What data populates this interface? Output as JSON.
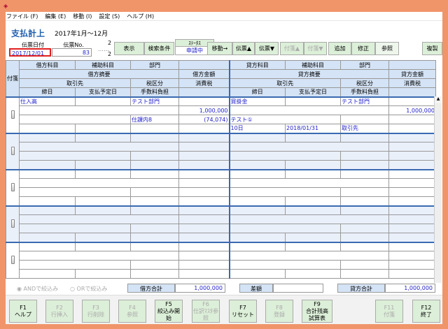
{
  "menu": [
    "ファイル (F)",
    "編集 (E)",
    "移動 (I)",
    "設定 (S)",
    "ヘルプ (H)"
  ],
  "header": {
    "title": "支払計上",
    "period": "2017年1月～12月",
    "date_label": "伝票日付",
    "date_value": "2017/12/01",
    "no_label": "伝票No.",
    "no_value": "83",
    "page_top": "2",
    "page_bottom": "2",
    "status_label": "ｽﾃｰﾀｽ",
    "status_value": "申請中"
  },
  "toolbar": {
    "show": "表示",
    "search": "検索条件",
    "move": "移動→",
    "slip_up": "伝票▲",
    "slip_down": "伝票▼",
    "tag_up": "付箋▲",
    "tag_down": "付箋▼",
    "add": "追加",
    "edit": "修正",
    "ref": "参照",
    "copy": "複製"
  },
  "grid_header": {
    "tag": "付箋",
    "debit_account": "借方科目",
    "debit_sub": "補助科目",
    "debit_dept": "部門",
    "debit_summary": "借方摘要",
    "debit_amount": "借方金額",
    "partner": "取引先",
    "tax_class": "税区分",
    "tax": "消費税",
    "closing": "締日",
    "pay_date": "支払予定日",
    "fee": "手数料負担",
    "credit_account": "貸方科目",
    "credit_sub": "補助科目",
    "credit_dept": "部門",
    "credit_summary": "貸方摘要",
    "credit_amount": "貸方金額",
    "partner2": "取引先",
    "tax_class2": "税区分",
    "tax2": "消費税",
    "closing2": "締日",
    "pay_date2": "支払予定日",
    "fee2": "手数料負担"
  },
  "entry": {
    "debit_account": "仕入高",
    "debit_dept": "テスト部門",
    "debit_amount": "1,000,000",
    "debit_tax_class": "仕課内8",
    "debit_tax": "(74,074)",
    "credit_account": "買掛金",
    "credit_dept": "テスト部門",
    "credit_amount": "1,000,000",
    "credit_partner": "テスト①",
    "closing": "10日",
    "pay_date": "2018/01/31",
    "fee": "取引先"
  },
  "filters": {
    "and": "ANDで絞込み",
    "or": "ORで絞込み"
  },
  "totals": {
    "debit_label": "借方合計",
    "debit": "1,000,000",
    "diff_label": "差額",
    "diff": "",
    "credit_label": "貸方合計",
    "credit": "1,000,000"
  },
  "fkeys": [
    {
      "key": "F1",
      "label": "ヘルプ",
      "enabled": true
    },
    {
      "key": "F2",
      "label": "行挿入",
      "enabled": false
    },
    {
      "key": "F3",
      "label": "行削除",
      "enabled": false
    },
    {
      "key": "F4",
      "label": "参照",
      "enabled": false
    },
    {
      "key": "F5",
      "label": "絞込み開始",
      "enabled": true
    },
    {
      "key": "F6",
      "label": "仕訳ﾏｽﾀ参照",
      "enabled": false
    },
    {
      "key": "F7",
      "label": "リセット",
      "enabled": true
    },
    {
      "key": "F8",
      "label": "登録",
      "enabled": false
    },
    {
      "key": "F9",
      "label": "合計残高 試算表",
      "enabled": true
    },
    {
      "key": "F11",
      "label": "付箋",
      "enabled": false
    },
    {
      "key": "F12",
      "label": "終了",
      "enabled": true
    }
  ]
}
